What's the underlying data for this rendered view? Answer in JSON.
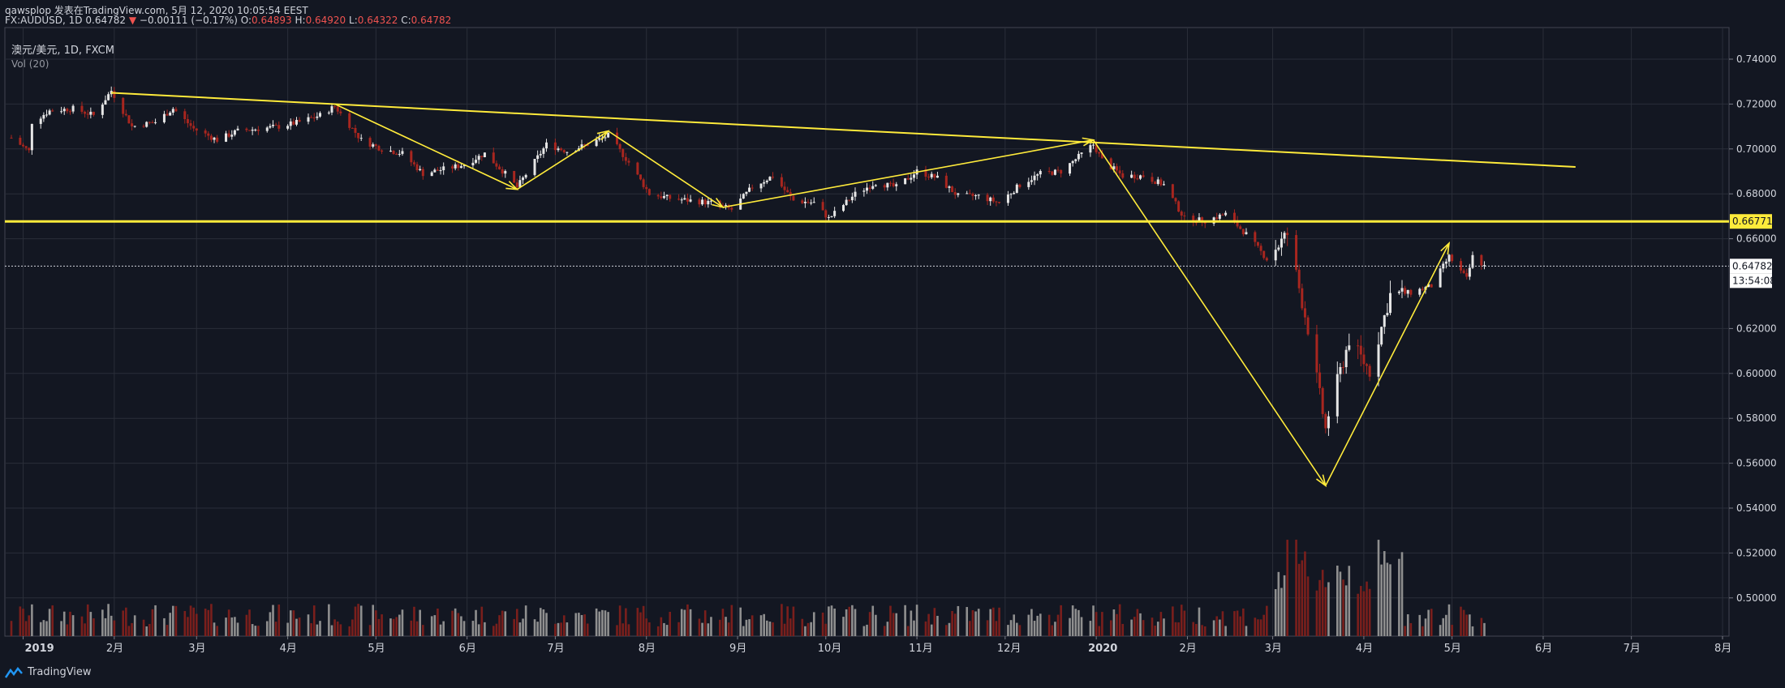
{
  "header": {
    "author_line": "qawsplop 发表在TradingView.com, 5月 12, 2020 10:05:54 EEST",
    "symbol": "FX:AUDUSD, 1D",
    "last": "0.64782",
    "change_arrow": "▼",
    "change": "−0.00111 (−0.17%)",
    "o_label": "O:",
    "o_value": "0.64893",
    "h_label": "H:",
    "h_value": "0.64920",
    "l_label": "L:",
    "l_value": "0.64322",
    "c_label": "C:",
    "c_value": "0.64782"
  },
  "legend": {
    "title": "澳元/美元, 1D, FXCM",
    "volume": "Vol (20)"
  },
  "price_scale": {
    "current_price_label": "0.64782",
    "countdown_label": "13:54:08",
    "support_label": "0.66771"
  },
  "footer": {
    "brand": "TradingView"
  },
  "colors": {
    "background": "#131722",
    "up": "#e6e6e6",
    "down": "#a8261f",
    "vol_up": "#8f8f8f",
    "vol_down": "#7a1f1c",
    "drawing": "#ffeb3b",
    "grid": "#2a2e39"
  },
  "chart_data": {
    "type": "candlestick",
    "title": "澳元/美元, 1D, FXCM",
    "xlabel": "",
    "ylabel": "",
    "ylim": [
      0.49,
      0.74
    ],
    "y_ticks": [
      0.74,
      0.72,
      0.7,
      0.68,
      0.66,
      0.62,
      0.6,
      0.58,
      0.56,
      0.54,
      0.52,
      0.5
    ],
    "y_tick_labels": [
      "0.74000",
      "0.72000",
      "0.70000",
      "0.68000",
      "0.66000",
      "0.62000",
      "0.60000",
      "0.58000",
      "0.56000",
      "0.54000",
      "0.52000",
      "0.50000"
    ],
    "x_ticks": [
      {
        "date": "2019-01-01",
        "label": "2019"
      },
      {
        "date": "2019-02-01",
        "label": "2月"
      },
      {
        "date": "2019-03-01",
        "label": "3月"
      },
      {
        "date": "2019-04-01",
        "label": "4月"
      },
      {
        "date": "2019-05-01",
        "label": "5月"
      },
      {
        "date": "2019-06-01",
        "label": "6月"
      },
      {
        "date": "2019-07-01",
        "label": "7月"
      },
      {
        "date": "2019-08-01",
        "label": "8月"
      },
      {
        "date": "2019-09-01",
        "label": "9月"
      },
      {
        "date": "2019-10-01",
        "label": "10月"
      },
      {
        "date": "2019-11-01",
        "label": "11月"
      },
      {
        "date": "2019-12-01",
        "label": "12月"
      },
      {
        "date": "2020-01-01",
        "label": "2020"
      },
      {
        "date": "2020-02-01",
        "label": "2月"
      },
      {
        "date": "2020-03-01",
        "label": "3月"
      },
      {
        "date": "2020-04-01",
        "label": "4月"
      },
      {
        "date": "2020-05-01",
        "label": "5月"
      },
      {
        "date": "2020-06-01",
        "label": "6月"
      },
      {
        "date": "2020-07-01",
        "label": "7月"
      },
      {
        "date": "2020-08-01",
        "label": "8月"
      }
    ],
    "xlim": [
      "2018-12-28",
      "2020-08-01"
    ],
    "close_series": [
      {
        "date": "2018-12-28",
        "close": 0.705
      },
      {
        "date": "2019-01-03",
        "close": 0.699
      },
      {
        "date": "2019-01-04",
        "close": 0.712
      },
      {
        "date": "2019-01-10",
        "close": 0.717
      },
      {
        "date": "2019-01-18",
        "close": 0.718
      },
      {
        "date": "2019-01-25",
        "close": 0.715
      },
      {
        "date": "2019-01-31",
        "close": 0.726
      },
      {
        "date": "2019-02-07",
        "close": 0.71
      },
      {
        "date": "2019-02-15",
        "close": 0.712
      },
      {
        "date": "2019-02-21",
        "close": 0.718
      },
      {
        "date": "2019-02-28",
        "close": 0.709
      },
      {
        "date": "2019-03-08",
        "close": 0.704
      },
      {
        "date": "2019-03-15",
        "close": 0.708
      },
      {
        "date": "2019-03-29",
        "close": 0.71
      },
      {
        "date": "2019-04-05",
        "close": 0.712
      },
      {
        "date": "2019-04-12",
        "close": 0.715
      },
      {
        "date": "2019-04-17",
        "close": 0.719
      },
      {
        "date": "2019-04-26",
        "close": 0.704
      },
      {
        "date": "2019-05-03",
        "close": 0.7
      },
      {
        "date": "2019-05-10",
        "close": 0.698
      },
      {
        "date": "2019-05-17",
        "close": 0.689
      },
      {
        "date": "2019-05-24",
        "close": 0.691
      },
      {
        "date": "2019-05-31",
        "close": 0.693
      },
      {
        "date": "2019-06-07",
        "close": 0.698
      },
      {
        "date": "2019-06-14",
        "close": 0.689
      },
      {
        "date": "2019-06-18",
        "close": 0.683
      },
      {
        "date": "2019-06-28",
        "close": 0.702
      },
      {
        "date": "2019-07-05",
        "close": 0.699
      },
      {
        "date": "2019-07-12",
        "close": 0.702
      },
      {
        "date": "2019-07-19",
        "close": 0.706
      },
      {
        "date": "2019-07-26",
        "close": 0.694
      },
      {
        "date": "2019-08-02",
        "close": 0.68
      },
      {
        "date": "2019-08-09",
        "close": 0.678
      },
      {
        "date": "2019-08-16",
        "close": 0.677
      },
      {
        "date": "2019-08-23",
        "close": 0.676
      },
      {
        "date": "2019-08-30",
        "close": 0.673
      },
      {
        "date": "2019-09-06",
        "close": 0.683
      },
      {
        "date": "2019-09-13",
        "close": 0.688
      },
      {
        "date": "2019-09-20",
        "close": 0.677
      },
      {
        "date": "2019-09-27",
        "close": 0.676
      },
      {
        "date": "2019-10-02",
        "close": 0.669
      },
      {
        "date": "2019-10-11",
        "close": 0.68
      },
      {
        "date": "2019-10-18",
        "close": 0.685
      },
      {
        "date": "2019-10-25",
        "close": 0.683
      },
      {
        "date": "2019-11-01",
        "close": 0.69
      },
      {
        "date": "2019-11-08",
        "close": 0.687
      },
      {
        "date": "2019-11-15",
        "close": 0.679
      },
      {
        "date": "2019-11-22",
        "close": 0.679
      },
      {
        "date": "2019-11-29",
        "close": 0.676
      },
      {
        "date": "2019-12-06",
        "close": 0.684
      },
      {
        "date": "2019-12-13",
        "close": 0.689
      },
      {
        "date": "2019-12-20",
        "close": 0.69
      },
      {
        "date": "2019-12-31",
        "close": 0.702
      },
      {
        "date": "2020-01-03",
        "close": 0.695
      },
      {
        "date": "2020-01-10",
        "close": 0.688
      },
      {
        "date": "2020-01-17",
        "close": 0.688
      },
      {
        "date": "2020-01-24",
        "close": 0.684
      },
      {
        "date": "2020-01-31",
        "close": 0.669
      },
      {
        "date": "2020-02-07",
        "close": 0.668
      },
      {
        "date": "2020-02-14",
        "close": 0.671
      },
      {
        "date": "2020-02-21",
        "close": 0.662
      },
      {
        "date": "2020-02-28",
        "close": 0.651
      },
      {
        "date": "2020-03-06",
        "close": 0.662
      },
      {
        "date": "2020-03-13",
        "close": 0.62
      },
      {
        "date": "2020-03-19",
        "close": 0.575
      },
      {
        "date": "2020-03-20",
        "close": 0.582
      },
      {
        "date": "2020-03-27",
        "close": 0.615
      },
      {
        "date": "2020-04-03",
        "close": 0.601
      },
      {
        "date": "2020-04-10",
        "close": 0.635
      },
      {
        "date": "2020-04-17",
        "close": 0.636
      },
      {
        "date": "2020-04-24",
        "close": 0.639
      },
      {
        "date": "2020-04-30",
        "close": 0.652
      },
      {
        "date": "2020-05-06",
        "close": 0.642
      },
      {
        "date": "2020-05-08",
        "close": 0.652
      },
      {
        "date": "2020-05-11",
        "close": 0.649
      },
      {
        "date": "2020-05-12",
        "close": 0.6478
      }
    ],
    "last_bar": {
      "open": 0.64893,
      "high": 0.6492,
      "low": 0.64322,
      "close": 0.64782
    },
    "volume_series": "Vol (20)",
    "annotations": {
      "horizontal_support": 0.66771,
      "current_price": 0.64782,
      "descending_trendline": [
        {
          "date": "2019-01-31",
          "price": 0.725
        },
        {
          "date": "2020-06-12",
          "price": 0.692
        }
      ],
      "zigzag": [
        {
          "date": "2019-04-17",
          "price": 0.72
        },
        {
          "date": "2019-06-18",
          "price": 0.682
        },
        {
          "date": "2019-07-19",
          "price": 0.708
        },
        {
          "date": "2019-08-27",
          "price": 0.674
        },
        {
          "date": "2019-12-31",
          "price": 0.704
        },
        {
          "date": "2020-03-19",
          "price": 0.55
        },
        {
          "date": "2020-04-30",
          "price": 0.658
        }
      ]
    }
  }
}
